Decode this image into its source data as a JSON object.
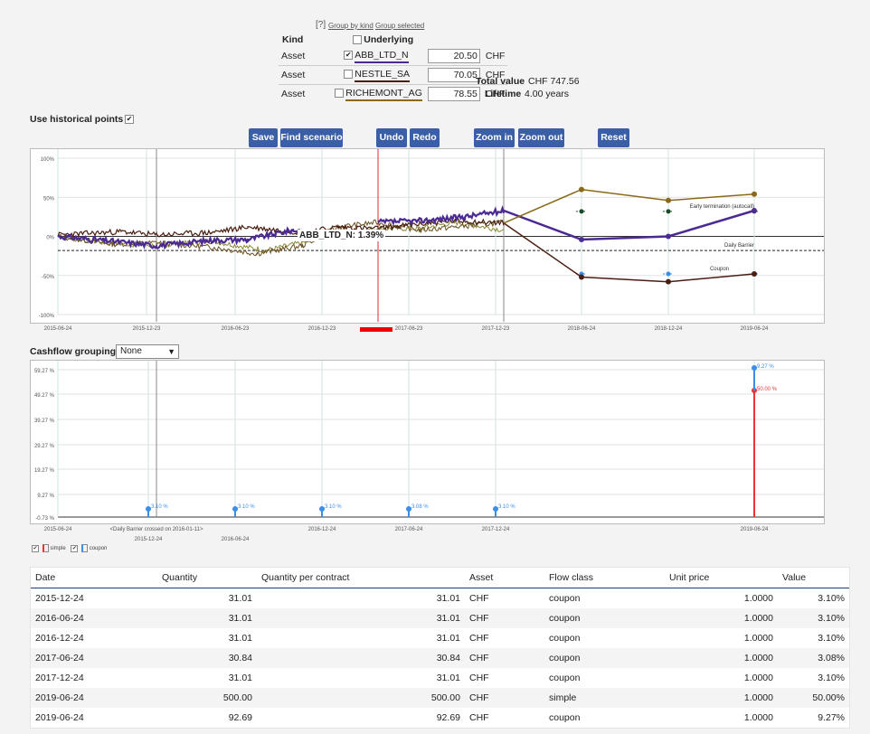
{
  "help_mark": "[?]",
  "links": {
    "group_by_kind": "Group by kind",
    "group_selected": "Group selected"
  },
  "kind_label": "Kind",
  "underlying_label": "Underlying",
  "assets": [
    {
      "kind": "Asset",
      "name": "ABB_LTD_N",
      "checked": true,
      "value": "20.50",
      "currency": "CHF",
      "color": "#4b2a94"
    },
    {
      "kind": "Asset",
      "name": "NESTLE_SA",
      "checked": false,
      "value": "70.05",
      "currency": "CHF",
      "color": "#4a1e10"
    },
    {
      "kind": "Asset",
      "name": "RICHEMONT_AG",
      "checked": false,
      "value": "78.55",
      "currency": "CHF",
      "color": "#8a6a1a"
    }
  ],
  "summary": {
    "total_label": "Total value",
    "total_value": "CHF 747.56",
    "lifetime_label": "Lifetime",
    "lifetime_value": "4.00 years"
  },
  "historical_label": "Use historical points",
  "buttons": {
    "save": "Save",
    "find": "Find scenario",
    "undo": "Undo",
    "redo": "Redo",
    "zoom_in": "Zoom in",
    "zoom_out": "Zoom out",
    "reset": "Reset"
  },
  "chart_data": [
    {
      "type": "line",
      "y_ticks": [
        "100%",
        "50%",
        "0%",
        "-50%",
        "-100%"
      ],
      "x_ticks": [
        "2015-06-24",
        "2015-12-23",
        "2016-06-23",
        "2016-12-23",
        "2017-06-23",
        "2017-12-23",
        "2018-06-24",
        "2018-12-24",
        "2019-06-24"
      ],
      "ylim": [
        -100,
        100
      ],
      "tooltip": "ABB_LTD_N: 1.39%",
      "annotations": [
        "Early termination (autocall)",
        "Daily Barrier",
        "Coupon"
      ],
      "series": [
        {
          "name": "ABB_LTD_N",
          "color": "#4b2a94",
          "scenario_values": [
            33,
            -4,
            0,
            33
          ]
        },
        {
          "name": "NESTLE_SA",
          "color": "#4a1e10",
          "scenario_values": [
            17,
            -52,
            -58,
            -48
          ]
        },
        {
          "name": "RICHEMONT_AG",
          "color": "#8a6a1a",
          "scenario_values": [
            17,
            60,
            46,
            54
          ]
        }
      ],
      "barrier_level": -18,
      "autocall_level": 32,
      "coupon_level": -48
    },
    {
      "type": "bar",
      "y_ticks": [
        "59.27 %",
        "49.27 %",
        "39.27 %",
        "29.27 %",
        "19.27 %",
        "9.27 %",
        "-0.73 %"
      ],
      "x_ticks_top": [
        "2015-06-24",
        "2016-12-24",
        "2017-06-24",
        "2017-12-24",
        "2019-06-24"
      ],
      "x_ticks_bottom": [
        "2015-12-24",
        "2016-06-24"
      ],
      "barrier_note": "<Daily Barrier crossed on 2016-01-11>",
      "coupons": [
        "3.10 %",
        "3.10 %",
        "3.10 %",
        "3.08 %",
        "3.10 %"
      ],
      "final_coupon": "9.27 %",
      "final_simple": "50.00 %",
      "legend": [
        "simple",
        "coupon"
      ]
    }
  ],
  "cashflow_label": "Cashflow grouping",
  "cashflow_select": "None",
  "table": {
    "headers": [
      "Date",
      "Quantity",
      "Quantity per contract",
      "Asset",
      "Flow class",
      "Unit price",
      "Value"
    ],
    "rows": [
      [
        "2015-12-24",
        "31.01",
        "31.01",
        "CHF",
        "coupon",
        "1.0000",
        "3.10%"
      ],
      [
        "2016-06-24",
        "31.01",
        "31.01",
        "CHF",
        "coupon",
        "1.0000",
        "3.10%"
      ],
      [
        "2016-12-24",
        "31.01",
        "31.01",
        "CHF",
        "coupon",
        "1.0000",
        "3.10%"
      ],
      [
        "2017-06-24",
        "30.84",
        "30.84",
        "CHF",
        "coupon",
        "1.0000",
        "3.08%"
      ],
      [
        "2017-12-24",
        "31.01",
        "31.01",
        "CHF",
        "coupon",
        "1.0000",
        "3.10%"
      ],
      [
        "2019-06-24",
        "500.00",
        "500.00",
        "CHF",
        "simple",
        "1.0000",
        "50.00%"
      ],
      [
        "2019-06-24",
        "92.69",
        "92.69",
        "CHF",
        "coupon",
        "1.0000",
        "9.27%"
      ]
    ]
  }
}
